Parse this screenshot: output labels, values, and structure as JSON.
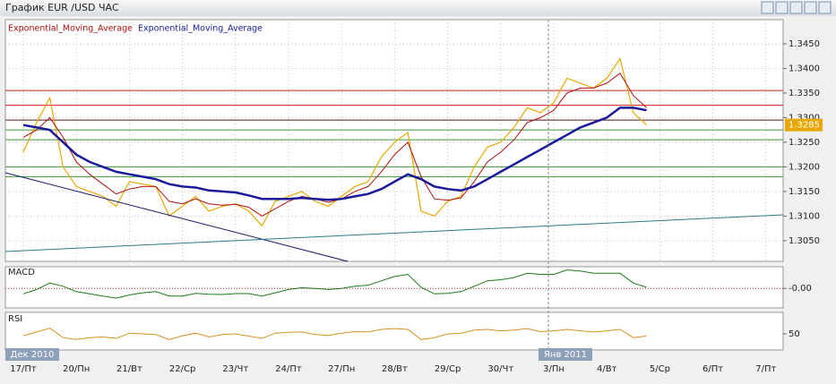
{
  "window": {
    "title": "График EUR /USD  ЧАС"
  },
  "period_labels": [
    "Дек 2010",
    "Янв 2011"
  ],
  "chart_data": [
    {
      "type": "line",
      "categories": [
        "17/Пт",
        null,
        null,
        null,
        "20/Пн",
        null,
        null,
        null,
        "21/Вт",
        null,
        null,
        null,
        "22/Ср",
        null,
        null,
        null,
        "23/Чт",
        null,
        null,
        null,
        "24/Пт",
        null,
        null,
        null,
        "27/Пн",
        null,
        null,
        null,
        "28/Вт",
        null,
        null,
        null,
        "29/Ср",
        null,
        null,
        null,
        "30/Чт",
        null,
        null,
        null,
        "3/Пн",
        null,
        null,
        null,
        "4/Вт",
        null,
        null,
        null,
        "5/Ср",
        null,
        null,
        null,
        "6/Пт",
        null,
        null,
        null,
        "7/Пт"
      ],
      "values": [
        1.323,
        1.329,
        1.334,
        1.32,
        1.316,
        1.315,
        1.314,
        1.312,
        1.317,
        1.3165,
        1.316,
        1.31,
        1.312,
        1.314,
        1.311,
        1.312,
        1.3125,
        1.311,
        1.308,
        1.313,
        1.314,
        1.315,
        1.313,
        1.312,
        1.314,
        1.316,
        1.317,
        1.322,
        1.325,
        1.327,
        1.311,
        1.31,
        1.313,
        1.314,
        1.32,
        1.324,
        1.325,
        1.328,
        1.332,
        1.331,
        1.333,
        1.338,
        1.337,
        1.336,
        1.338,
        1.342,
        1.331,
        1.3285,
        null,
        null,
        null,
        null,
        null,
        null,
        null,
        null,
        null
      ],
      "color": "#e8a800",
      "series": [
        {
          "name": "Exponential_Moving_Average",
          "color": "#b01010",
          "values": [
            1.326,
            1.3275,
            1.33,
            1.326,
            1.321,
            1.3185,
            1.3165,
            1.3145,
            1.3155,
            1.316,
            1.316,
            1.313,
            1.3125,
            1.3135,
            1.3125,
            1.3122,
            1.3124,
            1.3118,
            1.31,
            1.3115,
            1.313,
            1.314,
            1.3135,
            1.3128,
            1.3135,
            1.315,
            1.316,
            1.319,
            1.3225,
            1.325,
            1.318,
            1.3135,
            1.3132,
            1.3137,
            1.317,
            1.321,
            1.323,
            1.3255,
            1.329,
            1.33,
            1.3315,
            1.335,
            1.336,
            1.336,
            1.337,
            1.339,
            1.3345,
            1.332,
            null,
            null,
            null,
            null,
            null,
            null,
            null,
            null,
            null
          ]
        },
        {
          "name": "Exponential_Moving_Average",
          "color": "#1a1a9a",
          "values": [
            1.3285,
            1.328,
            1.3275,
            1.325,
            1.3225,
            1.321,
            1.32,
            1.319,
            1.3185,
            1.318,
            1.3175,
            1.3165,
            1.316,
            1.3158,
            1.3152,
            1.315,
            1.3148,
            1.3142,
            1.3135,
            1.3135,
            1.3135,
            1.3137,
            1.3135,
            1.3133,
            1.3135,
            1.314,
            1.3145,
            1.3155,
            1.317,
            1.3185,
            1.3175,
            1.316,
            1.3155,
            1.3152,
            1.316,
            1.3175,
            1.319,
            1.3205,
            1.322,
            1.3235,
            1.325,
            1.3265,
            1.328,
            1.329,
            1.33,
            1.332,
            1.332,
            1.3315,
            null,
            null,
            null,
            null,
            null,
            null,
            null,
            null,
            null
          ]
        }
      ],
      "levels": [
        1.3355,
        1.3325,
        1.3295,
        1.3275,
        1.3255,
        1.32,
        1.318
      ],
      "level_colors": [
        "#cc2020",
        "#cc2020",
        "#5a1010",
        "#3a9a3a",
        "#3a9a3a",
        "#3a9a3a",
        "#3a9a3a"
      ],
      "last_price": 1.3285,
      "ylim": [
        1.3008,
        1.3499
      ],
      "yticks": [
        {
          "value": 1.305,
          "label": "1.3050"
        },
        {
          "value": 1.31,
          "label": "1.3100"
        },
        {
          "value": 1.315,
          "label": "1.3150"
        },
        {
          "value": 1.32,
          "label": "1.3200"
        },
        {
          "value": 1.325,
          "label": "1.3250"
        },
        {
          "value": 1.33,
          "label": "1.3300"
        },
        {
          "value": 1.335,
          "label": "1.3350"
        },
        {
          "value": 1.34,
          "label": "1.3400"
        },
        {
          "value": 1.345,
          "label": "1.3450"
        }
      ],
      "grid": true
    },
    {
      "type": "line",
      "title": "MACD",
      "color": "#1a7a1a",
      "values": [
        -0.0025,
        -0.0005,
        0.0025,
        0.001,
        -0.0015,
        -0.0025,
        -0.0035,
        -0.0045,
        -0.003,
        -0.002,
        -0.0015,
        -0.0035,
        -0.0035,
        -0.0023,
        -0.0027,
        -0.0028,
        -0.0024,
        -0.0024,
        -0.0035,
        -0.002,
        -0.0005,
        0.0003,
        0,
        -0.0005,
        0,
        0.001,
        0.0015,
        0.0035,
        0.0055,
        0.0065,
        0.0005,
        -0.0025,
        -0.0023,
        -0.0015,
        0.001,
        0.0035,
        0.004,
        0.005,
        0.007,
        0.0065,
        0.0065,
        0.0085,
        0.008,
        0.007,
        0.007,
        0.007,
        0.0025,
        0.0005
      ],
      "ylim": [
        -0.009,
        0.01
      ],
      "yticks": [
        {
          "value": 0,
          "label": "-0.00"
        }
      ]
    },
    {
      "type": "line",
      "title": "RSI",
      "color": "#d89020",
      "values": [
        45,
        55,
        65,
        40,
        35,
        40,
        42,
        38,
        52,
        50,
        48,
        35,
        45,
        52,
        42,
        48,
        50,
        44,
        38,
        52,
        54,
        55,
        48,
        46,
        52,
        56,
        55,
        62,
        64,
        62,
        35,
        40,
        50,
        52,
        60,
        62,
        58,
        60,
        64,
        56,
        58,
        62,
        58,
        55,
        58,
        62,
        40,
        44
      ],
      "ylim": [
        0,
        100
      ],
      "yticks": [
        50
      ]
    }
  ]
}
